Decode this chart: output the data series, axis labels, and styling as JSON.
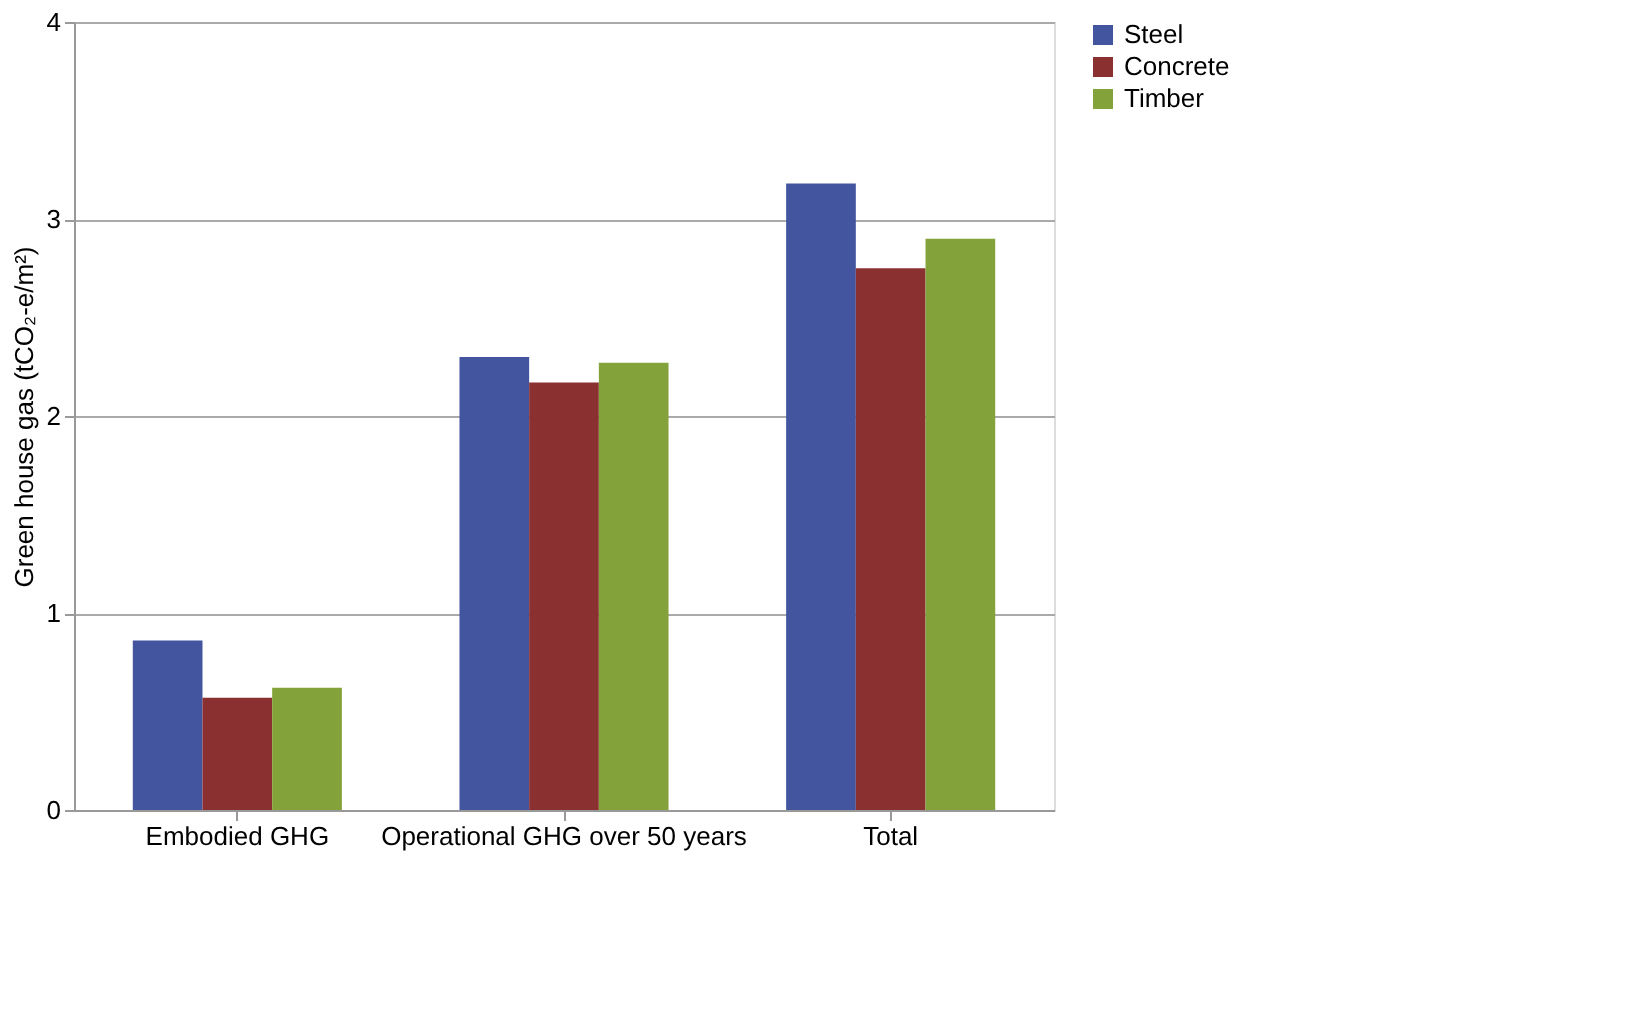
{
  "chart_data": {
    "type": "bar",
    "ylabel": "Green house gas (tCO₂-e/m²)",
    "categories": [
      "Embodied GHG",
      "Operational GHG over 50 years",
      "Total"
    ],
    "series": [
      {
        "name": "Steel",
        "color": "#4455a0",
        "values": [
          0.86,
          2.3,
          3.18
        ]
      },
      {
        "name": "Concrete",
        "color": "#8b3030",
        "values": [
          0.57,
          2.17,
          2.75
        ]
      },
      {
        "name": "Timber",
        "color": "#84a23a",
        "values": [
          0.62,
          2.27,
          2.9
        ]
      }
    ],
    "ylim": [
      0,
      4
    ],
    "yticks": [
      0,
      1,
      2,
      3,
      4
    ],
    "grid": "y",
    "legend": "right"
  }
}
